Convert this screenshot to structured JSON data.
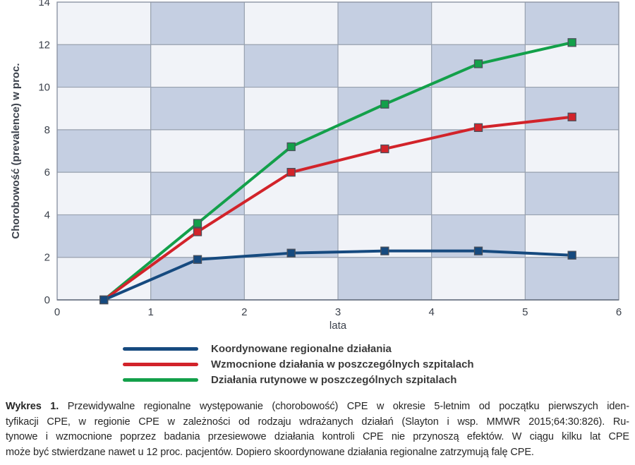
{
  "chart_data": {
    "type": "line",
    "x": [
      0.5,
      1.5,
      2.5,
      3.5,
      4.5,
      5.5
    ],
    "series": [
      {
        "name": "Koordynowane regionalne działania",
        "color": "#164a7f",
        "values": [
          0,
          1.9,
          2.2,
          2.3,
          2.3,
          2.1
        ]
      },
      {
        "name": "Wzmocnione działania w poszczególnych szpitalach",
        "color": "#d2232a",
        "values": [
          0,
          3.2,
          6.0,
          7.1,
          8.1,
          8.6
        ]
      },
      {
        "name": "Działania rutynowe w poszczególnych szpitalach",
        "color": "#13a04a",
        "values": [
          0,
          3.6,
          7.2,
          9.2,
          11.1,
          12.1
        ]
      }
    ],
    "title": "",
    "xlabel": "lata",
    "ylabel": "Chorobowość (prevalence) w proc.",
    "xlim": [
      0,
      6
    ],
    "ylim": [
      0,
      14
    ],
    "xticks": [
      0,
      1,
      2,
      3,
      4,
      5,
      6
    ],
    "yticks": [
      0,
      2,
      4,
      6,
      8,
      10,
      12,
      14
    ],
    "grid": "checkerboard",
    "legend_position": "bottom",
    "checker_color_light": "#f1f3f8",
    "checker_color_dark": "#c5cfe2",
    "grid_color": "#97a0ae",
    "border_color": "#8d95a4",
    "axis_color": "#626d7c",
    "marker_shape": "square",
    "marker_border_color": "#4a505a"
  },
  "legend": {
    "items": [
      {
        "label": "Koordynowane regionalne działania",
        "color": "#164a7f"
      },
      {
        "label": "Wzmocnione działania w poszczególnych szpitalach",
        "color": "#d2232a"
      },
      {
        "label": "Działania rutynowe w poszczególnych szpitalach",
        "color": "#13a04a"
      }
    ]
  },
  "caption": {
    "bold_label": "Wykres 1.",
    "lines": [
      "Przewidywalne regionalne występowanie (chorobowość) CPE w okresie 5-letnim od początku pierwszych iden-",
      "tyfikacji CPE, w regionie CPE w zależności od rodzaju wdrażanych działań (Slayton i wsp. MMWR 2015;64:30:826). Ru-",
      "tynowe i wzmocnione poprzez badania przesiewowe działania kontroli CPE nie przynoszą efektów. W ciągu kilku lat CPE",
      "może być stwierdzane nawet u 12 proc. pacjentów. Dopiero skoordynowane działania regionalne zatrzymują falę CPE."
    ]
  }
}
